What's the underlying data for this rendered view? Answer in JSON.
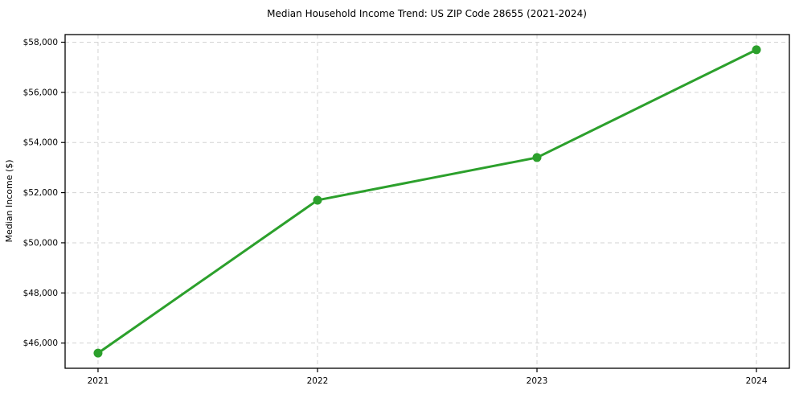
{
  "chart_data": {
    "type": "line",
    "title": "Median Household Income Trend: US ZIP Code 28655 (2021-2024)",
    "xlabel": "",
    "ylabel": "Median Income ($)",
    "x": [
      2021,
      2022,
      2023,
      2024
    ],
    "series": [
      {
        "name": "Median Household Income",
        "values": [
          45600,
          51700,
          53400,
          57700
        ]
      }
    ],
    "xticks": [
      2021,
      2022,
      2023,
      2024
    ],
    "xtick_labels": [
      "2021",
      "2022",
      "2023",
      "2024"
    ],
    "yticks": [
      46000,
      48000,
      50000,
      52000,
      54000,
      56000,
      58000
    ],
    "ytick_labels": [
      "$46,000",
      "$48,000",
      "$50,000",
      "$52,000",
      "$54,000",
      "$56,000",
      "$58,000"
    ],
    "xlim": [
      2020.85,
      2024.15
    ],
    "ylim": [
      44995,
      58305
    ],
    "grid": true,
    "legend": false,
    "colors": {
      "line": "#2ca02c",
      "marker": "#2ca02c",
      "grid": "#d3d3d3",
      "spine": "#000000",
      "background": "#ffffff"
    }
  }
}
